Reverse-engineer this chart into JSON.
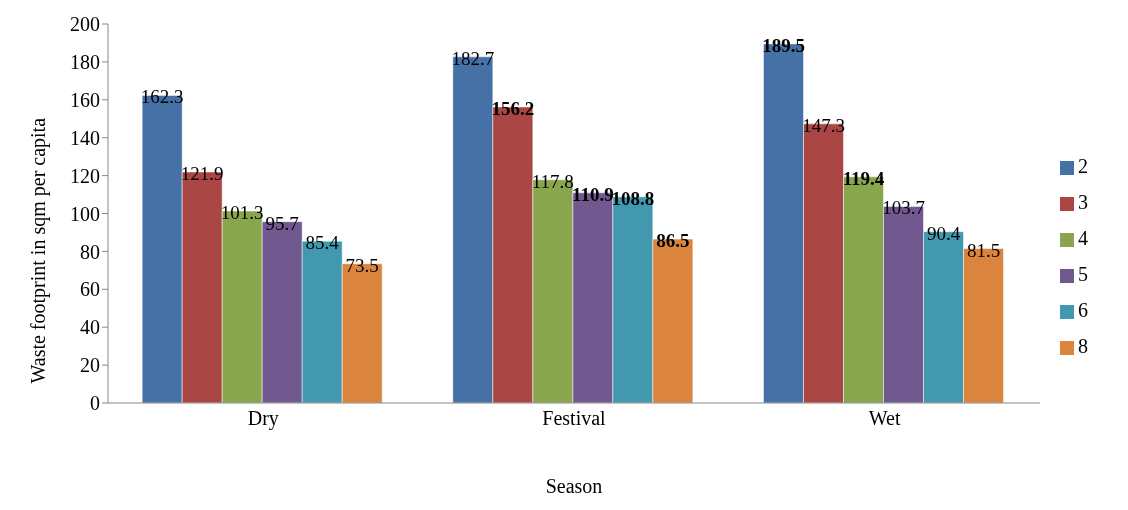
{
  "chart_data": {
    "type": "bar",
    "xlabel": "Season",
    "ylabel": "Waste footprint in sqm per capita",
    "categories": [
      "Dry",
      "Festival",
      "Wet"
    ],
    "series": [
      {
        "name": "2",
        "color": "#4571a7",
        "values": [
          162.3,
          182.7,
          189.5
        ]
      },
      {
        "name": "3",
        "color": "#aa4643",
        "values": [
          121.9,
          156.2,
          147.3
        ]
      },
      {
        "name": "4",
        "color": "#89a54e",
        "values": [
          101.3,
          117.8,
          119.4
        ]
      },
      {
        "name": "5",
        "color": "#71588f",
        "values": [
          95.7,
          110.9,
          103.7
        ]
      },
      {
        "name": "6",
        "color": "#4198af",
        "values": [
          85.4,
          108.8,
          90.4
        ]
      },
      {
        "name": "8",
        "color": "#db843d",
        "values": [
          73.5,
          86.5,
          81.5
        ]
      }
    ],
    "ylim": [
      0,
      200
    ],
    "yticks": [
      0,
      20,
      40,
      60,
      80,
      100,
      120,
      140,
      160,
      180,
      200
    ],
    "grid": false,
    "legend": "right",
    "data_labels": true
  }
}
